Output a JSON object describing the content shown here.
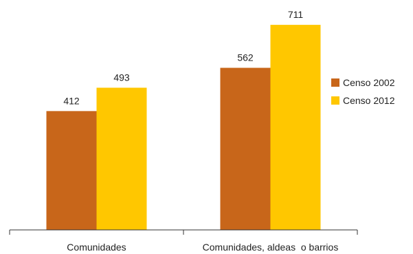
{
  "chart_data": {
    "type": "bar",
    "categories": [
      "Comunidades",
      "Comunidades, aldeas  o barrios"
    ],
    "series": [
      {
        "name": "Censo 2002",
        "values": [
          412,
          562
        ],
        "color": "#C8661A"
      },
      {
        "name": "Censo 2012",
        "values": [
          493,
          711
        ],
        "color": "#FFC700"
      }
    ],
    "ylim": [
      0,
      800
    ],
    "grid": false,
    "legend_position": "right"
  }
}
